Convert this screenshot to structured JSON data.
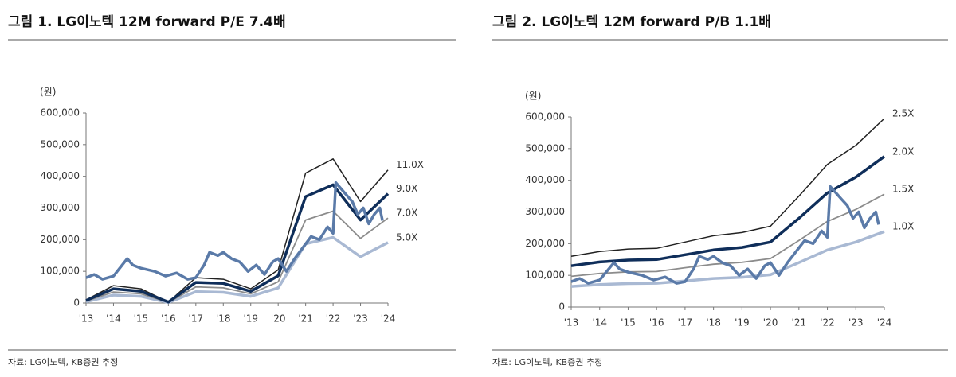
{
  "chart_data": [
    {
      "type": "line",
      "title": "그림 1. LG이노텍 12M forward P/E 7.4배",
      "y_unit": "(원)",
      "source": "자료: LG이노텍, KB증권 추정",
      "xlim": [
        2013,
        2024
      ],
      "xticks": [
        {
          "value": 2013,
          "label": "'13"
        },
        {
          "value": 2014,
          "label": "'14"
        },
        {
          "value": 2015,
          "label": "'15"
        },
        {
          "value": 2016,
          "label": "'16"
        },
        {
          "value": 2017,
          "label": "'17"
        },
        {
          "value": 2018,
          "label": "'18"
        },
        {
          "value": 2019,
          "label": "'19"
        },
        {
          "value": 2020,
          "label": "'20"
        },
        {
          "value": 2021,
          "label": "'21"
        },
        {
          "value": 2022,
          "label": "'22"
        },
        {
          "value": 2023,
          "label": "'23"
        },
        {
          "value": 2024,
          "label": "'24"
        }
      ],
      "ylim": [
        0,
        600000
      ],
      "yticks": [
        0,
        {
          "value": 100000,
          "label": "100,000"
        },
        {
          "value": 200000,
          "label": "200,000"
        },
        {
          "value": 300000,
          "label": "300,000"
        },
        {
          "value": 400000,
          "label": "400,000"
        },
        {
          "value": 500000,
          "label": "500,000"
        },
        {
          "value": 600000,
          "label": "600,000"
        }
      ],
      "series": [
        {
          "name": "11.0X",
          "color": "#222222",
          "x": [
            2013,
            2014,
            2015,
            2016,
            2017,
            2018,
            2019,
            2020,
            2021,
            2022,
            2023,
            2024
          ],
          "values": [
            10000,
            55000,
            45000,
            3000,
            80000,
            75000,
            45000,
            105000,
            410000,
            455000,
            320000,
            420000
          ]
        },
        {
          "name": "9.0X",
          "color": "#0f2e5a",
          "x": [
            2013,
            2014,
            2015,
            2016,
            2017,
            2018,
            2019,
            2020,
            2021,
            2022,
            2023,
            2024
          ],
          "values": [
            8000,
            45000,
            37000,
            3000,
            65000,
            62000,
            37000,
            86000,
            336000,
            373000,
            262000,
            345000
          ]
        },
        {
          "name": "7.0X",
          "color": "#8c8c8c",
          "x": [
            2013,
            2014,
            2015,
            2016,
            2017,
            2018,
            2019,
            2020,
            2021,
            2022,
            2023,
            2024
          ],
          "values": [
            6000,
            35000,
            29000,
            2000,
            51000,
            48000,
            29000,
            67000,
            262000,
            290000,
            204000,
            268000
          ]
        },
        {
          "name": "5.0X",
          "color": "#a9b9d3",
          "x": [
            2013,
            2014,
            2015,
            2016,
            2017,
            2018,
            2019,
            2020,
            2021,
            2022,
            2023,
            2024
          ],
          "values": [
            4000,
            25000,
            21000,
            1500,
            36000,
            34000,
            21000,
            48000,
            187000,
            207000,
            146000,
            191000
          ]
        },
        {
          "color": "#5a7aa8",
          "x": [
            2013,
            2013.3,
            2013.6,
            2014,
            2014.5,
            2014.7,
            2015,
            2015.5,
            2015.9,
            2016.3,
            2016.7,
            2017,
            2017.3,
            2017.5,
            2017.8,
            2018,
            2018.3,
            2018.6,
            2018.9,
            2019.2,
            2019.5,
            2019.8,
            2020,
            2020.3,
            2020.6,
            2020.9,
            2021.2,
            2021.5,
            2021.8,
            2022,
            2022.1,
            2022.3,
            2022.5,
            2022.7,
            2022.9,
            2023.1,
            2023.3,
            2023.5,
            2023.7,
            2023.8
          ],
          "values": [
            80000,
            90000,
            75000,
            85000,
            140000,
            120000,
            110000,
            100000,
            85000,
            95000,
            75000,
            80000,
            120000,
            160000,
            150000,
            160000,
            140000,
            130000,
            100000,
            120000,
            90000,
            130000,
            140000,
            100000,
            140000,
            175000,
            210000,
            200000,
            240000,
            220000,
            380000,
            360000,
            340000,
            320000,
            280000,
            300000,
            250000,
            280000,
            300000,
            260000
          ]
        }
      ]
    },
    {
      "type": "line",
      "title": "그림 2. LG이노텍 12M forward P/B 1.1배",
      "y_unit": "(원)",
      "source": "자료: LG이노텍, KB증권 추정",
      "xlim": [
        2013,
        2024
      ],
      "xticks": [
        {
          "value": 2013,
          "label": "'13"
        },
        {
          "value": 2014,
          "label": "'14"
        },
        {
          "value": 2015,
          "label": "'15"
        },
        {
          "value": 2016,
          "label": "'16"
        },
        {
          "value": 2017,
          "label": "'17"
        },
        {
          "value": 2018,
          "label": "'18"
        },
        {
          "value": 2019,
          "label": "'19"
        },
        {
          "value": 2020,
          "label": "'20"
        },
        {
          "value": 2021,
          "label": "'21"
        },
        {
          "value": 2022,
          "label": "'22"
        },
        {
          "value": 2023,
          "label": "'23"
        },
        {
          "value": 2024,
          "label": "'24"
        }
      ],
      "ylim": [
        0,
        600000
      ],
      "yticks": [
        0,
        {
          "value": 100000,
          "label": "100,000"
        },
        {
          "value": 200000,
          "label": "200,000"
        },
        {
          "value": 300000,
          "label": "300,000"
        },
        {
          "value": 400000,
          "label": "400,000"
        },
        {
          "value": 500000,
          "label": "500,000"
        },
        {
          "value": 600000,
          "label": "600,000"
        }
      ],
      "series": [
        {
          "name": "2.5X",
          "color": "#222222",
          "x": [
            2013,
            2014,
            2015,
            2016,
            2017,
            2018,
            2019,
            2020,
            2021,
            2022,
            2023,
            2024
          ],
          "values": [
            160000,
            175000,
            183000,
            185000,
            205000,
            225000,
            235000,
            255000,
            350000,
            450000,
            510000,
            595000
          ]
        },
        {
          "name": "2.0X",
          "color": "#0f2e5a",
          "x": [
            2013,
            2014,
            2015,
            2016,
            2017,
            2018,
            2019,
            2020,
            2021,
            2022,
            2023,
            2024
          ],
          "values": [
            130000,
            142000,
            148000,
            150000,
            165000,
            180000,
            188000,
            205000,
            280000,
            360000,
            410000,
            475000
          ]
        },
        {
          "name": "1.5X",
          "color": "#8c8c8c",
          "x": [
            2013,
            2014,
            2015,
            2016,
            2017,
            2018,
            2019,
            2020,
            2021,
            2022,
            2023,
            2024
          ],
          "values": [
            97000,
            106000,
            111000,
            112000,
            124000,
            135000,
            141000,
            153000,
            210000,
            270000,
            308000,
            356000
          ]
        },
        {
          "name": "1.0X",
          "color": "#a9b9d3",
          "x": [
            2013,
            2014,
            2015,
            2016,
            2017,
            2018,
            2019,
            2020,
            2021,
            2022,
            2023,
            2024
          ],
          "values": [
            65000,
            71000,
            74000,
            75000,
            82000,
            90000,
            94000,
            102000,
            140000,
            180000,
            205000,
            238000
          ]
        },
        {
          "color": "#5a7aa8",
          "x": [
            2013,
            2013.3,
            2013.6,
            2014,
            2014.5,
            2014.7,
            2015,
            2015.5,
            2015.9,
            2016.3,
            2016.7,
            2017,
            2017.3,
            2017.5,
            2017.8,
            2018,
            2018.3,
            2018.6,
            2018.9,
            2019.2,
            2019.5,
            2019.8,
            2020,
            2020.3,
            2020.6,
            2020.9,
            2021.2,
            2021.5,
            2021.8,
            2022,
            2022.1,
            2022.3,
            2022.5,
            2022.7,
            2022.9,
            2023.1,
            2023.3,
            2023.5,
            2023.7,
            2023.8
          ],
          "values": [
            80000,
            90000,
            75000,
            85000,
            140000,
            120000,
            110000,
            100000,
            85000,
            95000,
            75000,
            80000,
            120000,
            160000,
            150000,
            160000,
            140000,
            130000,
            100000,
            120000,
            90000,
            130000,
            140000,
            100000,
            140000,
            175000,
            210000,
            200000,
            240000,
            220000,
            380000,
            360000,
            340000,
            320000,
            280000,
            300000,
            250000,
            280000,
            300000,
            260000
          ]
        }
      ]
    }
  ]
}
